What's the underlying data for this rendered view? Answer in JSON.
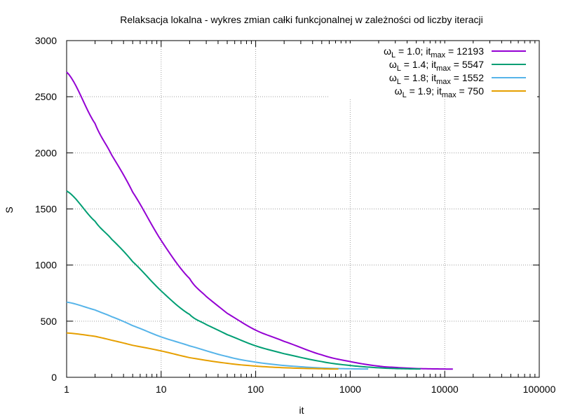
{
  "chart_data": {
    "type": "line",
    "title": "Relaksacja lokalna - wykres zmian całki funkcjonalnej w zależności od liczby iteracji",
    "xlabel": "it",
    "ylabel": "S",
    "xscale": "log",
    "xlim": [
      1,
      100000
    ],
    "ylim": [
      0,
      3000
    ],
    "xticks": [
      1,
      10,
      100,
      1000,
      10000,
      100000
    ],
    "xtick_labels": [
      "1",
      "10",
      "100",
      "1000",
      "10000",
      "100000"
    ],
    "yticks": [
      0,
      500,
      1000,
      1500,
      2000,
      2500,
      3000
    ],
    "ytick_labels": [
      "0",
      "500",
      "1000",
      "1500",
      "2000",
      "2500",
      "3000"
    ],
    "grid": true,
    "legend_position": "top-right",
    "series": [
      {
        "name": "ωL = 1.0; itmax = 12193",
        "legend": {
          "omega": "1.0",
          "itmax": "12193"
        },
        "color": "#9400d3",
        "x": [
          1,
          2,
          3,
          5,
          10,
          20,
          30,
          50,
          100,
          200,
          500,
          1000,
          2000,
          3000,
          5000,
          10000,
          12193
        ],
        "y": [
          2720,
          2260,
          1980,
          1650,
          1220,
          880,
          720,
          570,
          420,
          320,
          200,
          140,
          100,
          88,
          78,
          74,
          73
        ]
      },
      {
        "name": "ωL = 1.4; itmax = 5547",
        "legend": {
          "omega": "1.4",
          "itmax": "5547"
        },
        "color": "#009e73",
        "x": [
          1,
          2,
          3,
          5,
          10,
          20,
          30,
          50,
          100,
          200,
          500,
          1000,
          2000,
          3000,
          5547
        ],
        "y": [
          1660,
          1390,
          1230,
          1030,
          770,
          560,
          470,
          380,
          280,
          210,
          140,
          105,
          85,
          78,
          74
        ]
      },
      {
        "name": "ωL = 1.8; itmax = 1552",
        "legend": {
          "omega": "1.8",
          "itmax": "1552"
        },
        "color": "#56b4e9",
        "x": [
          1,
          2,
          3,
          5,
          10,
          20,
          50,
          100,
          200,
          500,
          1000,
          1552
        ],
        "y": [
          670,
          600,
          540,
          460,
          360,
          280,
          185,
          135,
          105,
          83,
          76,
          74
        ]
      },
      {
        "name": "ωL = 1.9; itmax = 750",
        "legend": {
          "omega": "1.9",
          "itmax": "750"
        },
        "color": "#e69f00",
        "x": [
          1,
          2,
          3,
          5,
          10,
          20,
          50,
          100,
          200,
          500,
          750
        ],
        "y": [
          395,
          365,
          330,
          285,
          235,
          175,
          125,
          100,
          85,
          76,
          74
        ]
      }
    ]
  }
}
